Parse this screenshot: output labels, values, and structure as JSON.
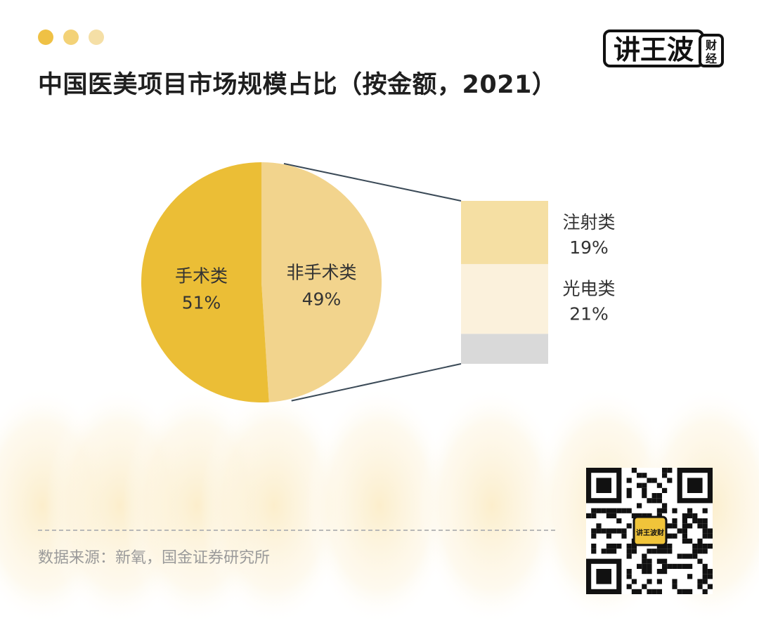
{
  "header": {
    "dot_colors": [
      "#EFC145",
      "#F3D277",
      "#F5DFA6"
    ],
    "title": "中国医美项目市场规模占比（按金额，2021）",
    "logo": {
      "text": "讲王波",
      "suffix_line1": "财",
      "suffix_line2": "经"
    }
  },
  "chart_data": {
    "type": "pie",
    "title": "中国医美项目市场规模占比（按金额，2021）",
    "slices": [
      {
        "label": "手术类",
        "value": 51,
        "value_label": "51%",
        "color": "#EBBE36"
      },
      {
        "label": "非手术类",
        "value": 49,
        "value_label": "49%",
        "color": "#F2D48D"
      }
    ],
    "breakdown": {
      "of": "非手术类",
      "type": "stacked-bar",
      "segments": [
        {
          "label": "注射类",
          "value": 19,
          "value_label": "19%",
          "color": "#F5DFA3"
        },
        {
          "label": "光电类",
          "value": 21,
          "value_label": "21%",
          "color": "#FBF1DC"
        },
        {
          "label": "",
          "value": 9,
          "value_label": "",
          "color": "#D9D9D9"
        }
      ]
    }
  },
  "footer": {
    "source": "数据来源：新氧，国金证券研究所",
    "qr_center_label": "讲王波财"
  },
  "colors": {
    "text_dark": "#1f1f1f",
    "text_label": "#333333",
    "text_muted": "#9a9a9a",
    "connector": "#3b4a57"
  }
}
